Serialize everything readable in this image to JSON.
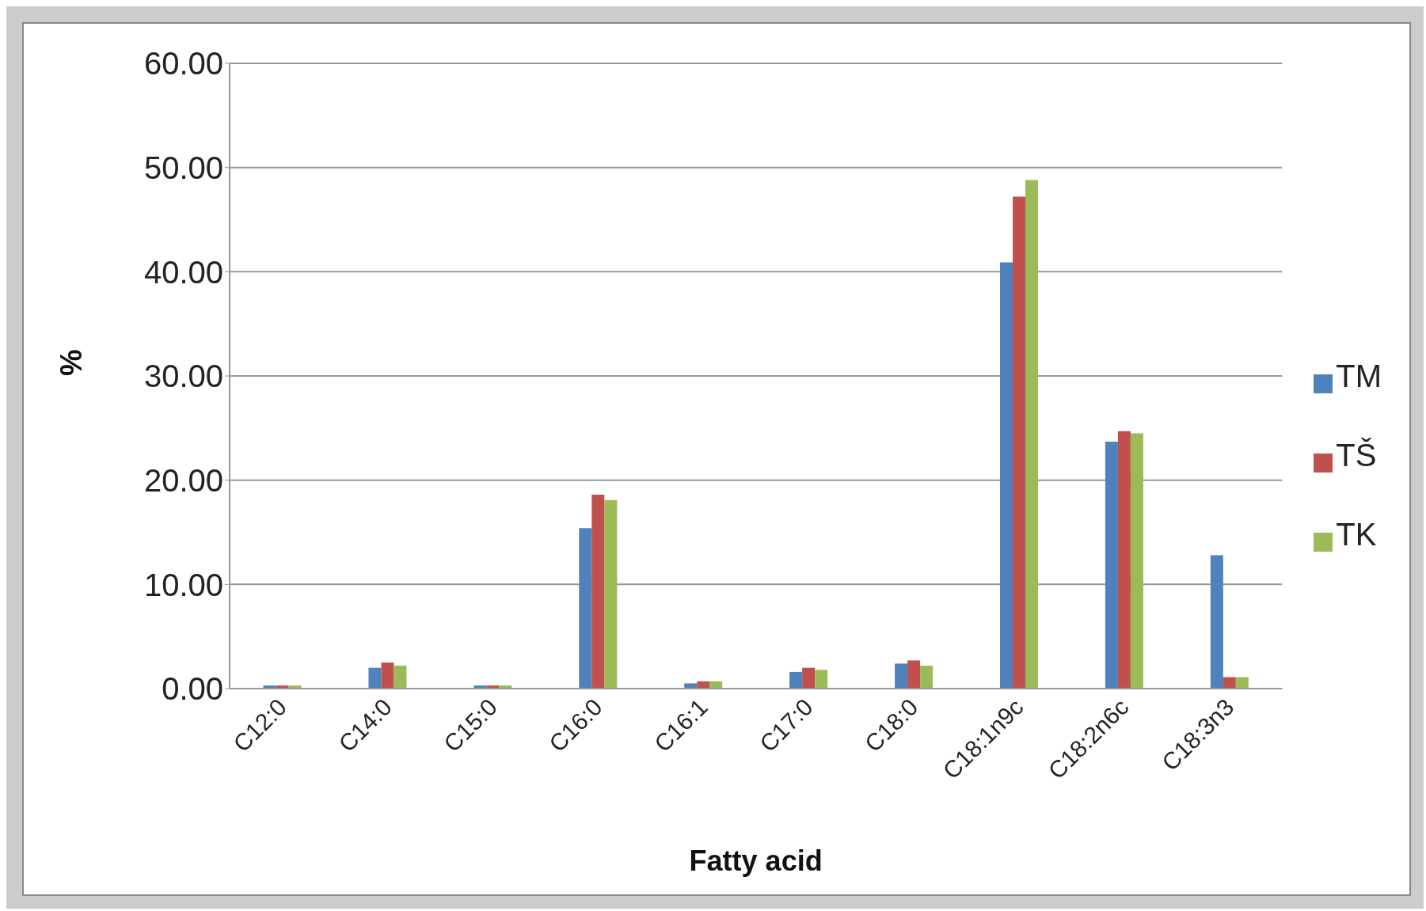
{
  "chart_data": {
    "type": "bar",
    "xlabel": "Fatty acid",
    "ylabel": "%",
    "categories": [
      "C12:0",
      "C14:0",
      "C15:0",
      "C16:0",
      "C16:1",
      "C17:0",
      "C18:0",
      "C18:1n9c",
      "C18:2n6c",
      "C18:3n3"
    ],
    "series": [
      {
        "name": "TM",
        "color": "#4f81bd",
        "values": [
          0.3,
          2.0,
          0.3,
          15.4,
          0.5,
          1.6,
          2.4,
          40.9,
          23.7,
          12.8
        ]
      },
      {
        "name": "TŠ",
        "color": "#c0504d",
        "values": [
          0.3,
          2.5,
          0.3,
          18.6,
          0.7,
          2.0,
          2.7,
          47.2,
          24.7,
          1.1
        ]
      },
      {
        "name": "TK",
        "color": "#9bbb59",
        "values": [
          0.3,
          2.2,
          0.3,
          18.1,
          0.7,
          1.8,
          2.2,
          48.8,
          24.5,
          1.1
        ]
      }
    ],
    "ylim": [
      0,
      60
    ],
    "yticks": [
      {
        "value": 0,
        "label": "0.00"
      },
      {
        "value": 10,
        "label": "10.00"
      },
      {
        "value": 20,
        "label": "20.00"
      },
      {
        "value": 30,
        "label": "30.00"
      },
      {
        "value": 40,
        "label": "40.00"
      },
      {
        "value": 50,
        "label": "50.00"
      },
      {
        "value": 60,
        "label": "60.00"
      }
    ],
    "grid": "y",
    "legend": "right"
  }
}
